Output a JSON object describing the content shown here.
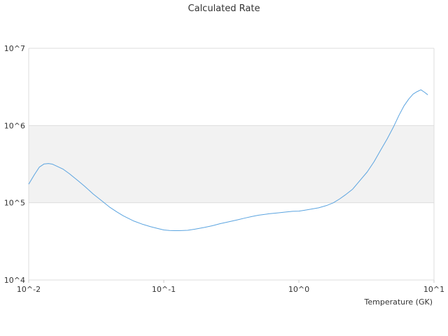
{
  "chart_data": {
    "type": "line",
    "title": "Calculated Rate",
    "xlabel": "Temperature (GK)",
    "ylabel": "",
    "x_scale": "log",
    "y_scale": "log",
    "xlim": [
      0.01,
      10
    ],
    "ylim": [
      10000,
      10000000
    ],
    "x_ticks": [
      {
        "value": 0.01,
        "label": "10^-2"
      },
      {
        "value": 0.1,
        "label": "10^-1"
      },
      {
        "value": 1,
        "label": "10^0"
      },
      {
        "value": 10,
        "label": "10^1"
      }
    ],
    "y_ticks": [
      {
        "value": 10000,
        "label": "10^4"
      },
      {
        "value": 100000,
        "label": "10^5"
      },
      {
        "value": 1000000,
        "label": "10^6"
      },
      {
        "value": 10000000,
        "label": "10^7"
      }
    ],
    "bands": [
      {
        "from": 100000,
        "to": 1000000,
        "color": "#f2f2f2"
      }
    ],
    "grid": true,
    "legend": "none",
    "series": [
      {
        "color": "#5ba4e0",
        "points": [
          [
            0.01,
            174000
          ],
          [
            0.011,
            230000
          ],
          [
            0.012,
            290000
          ],
          [
            0.013,
            318000
          ],
          [
            0.014,
            322000
          ],
          [
            0.015,
            316000
          ],
          [
            0.016,
            300000
          ],
          [
            0.018,
            272000
          ],
          [
            0.02,
            238000
          ],
          [
            0.023,
            195000
          ],
          [
            0.026,
            163000
          ],
          [
            0.03,
            130000
          ],
          [
            0.035,
            105000
          ],
          [
            0.04,
            87000
          ],
          [
            0.045,
            76000
          ],
          [
            0.05,
            68000
          ],
          [
            0.055,
            62500
          ],
          [
            0.06,
            58000
          ],
          [
            0.07,
            52500
          ],
          [
            0.08,
            49000
          ],
          [
            0.09,
            46500
          ],
          [
            0.1,
            44500
          ],
          [
            0.11,
            43800
          ],
          [
            0.12,
            43500
          ],
          [
            0.13,
            43600
          ],
          [
            0.15,
            44000
          ],
          [
            0.17,
            45500
          ],
          [
            0.2,
            48000
          ],
          [
            0.23,
            50500
          ],
          [
            0.26,
            53500
          ],
          [
            0.3,
            56500
          ],
          [
            0.35,
            60000
          ],
          [
            0.4,
            63500
          ],
          [
            0.45,
            66500
          ],
          [
            0.5,
            69000
          ],
          [
            0.6,
            72000
          ],
          [
            0.7,
            74000
          ],
          [
            0.8,
            76000
          ],
          [
            0.9,
            77500
          ],
          [
            1.0,
            78000
          ],
          [
            1.1,
            80000
          ],
          [
            1.2,
            82000
          ],
          [
            1.4,
            86000
          ],
          [
            1.6,
            92000
          ],
          [
            1.8,
            100000
          ],
          [
            2.0,
            112000
          ],
          [
            2.2,
            126000
          ],
          [
            2.5,
            150000
          ],
          [
            2.8,
            190000
          ],
          [
            3.2,
            250000
          ],
          [
            3.6,
            340000
          ],
          [
            4.0,
            470000
          ],
          [
            4.5,
            670000
          ],
          [
            5.0,
            950000
          ],
          [
            5.5,
            1350000
          ],
          [
            6.0,
            1800000
          ],
          [
            6.5,
            2200000
          ],
          [
            7.0,
            2550000
          ],
          [
            7.5,
            2750000
          ],
          [
            8.0,
            2900000
          ],
          [
            8.5,
            2700000
          ],
          [
            9.0,
            2500000
          ]
        ]
      }
    ]
  }
}
